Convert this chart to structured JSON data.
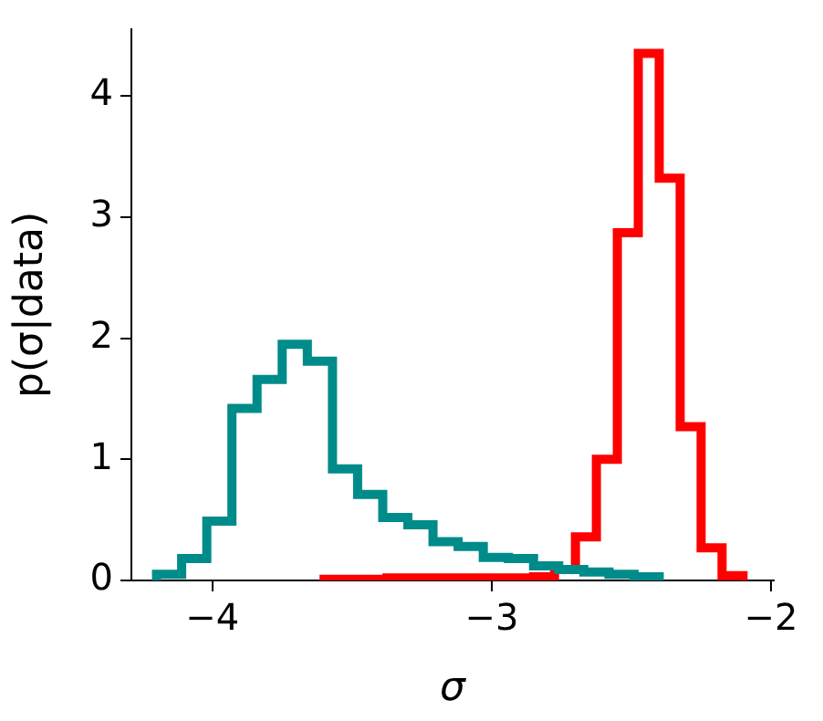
{
  "chart_data": {
    "type": "step",
    "xlabel": "σ",
    "ylabel": "p(σ|data)",
    "xlim": [
      -4.29,
      -1.99
    ],
    "ylim": [
      0,
      4.55
    ],
    "xticks": [
      {
        "value": -4,
        "label": "−4"
      },
      {
        "value": -3,
        "label": "−3"
      },
      {
        "value": -2,
        "label": "−2"
      }
    ],
    "yticks": [
      0,
      1,
      2,
      3,
      4
    ],
    "grid": false,
    "legend": false,
    "series": [
      {
        "color": "#008b8b",
        "x": [
          -4.2,
          -4.2,
          -4.11,
          -4.02,
          -3.93,
          -3.84,
          -3.75,
          -3.66,
          -3.57,
          -3.48,
          -3.39,
          -3.3,
          -3.21,
          -3.12,
          -3.03,
          -2.94,
          -2.85,
          -2.76,
          -2.67,
          -2.58,
          -2.49,
          -2.4
        ],
        "values": [
          0,
          0.05,
          0.18,
          0.49,
          1.42,
          1.66,
          1.95,
          1.81,
          0.92,
          0.71,
          0.52,
          0.46,
          0.32,
          0.28,
          0.19,
          0.18,
          0.12,
          0.09,
          0.07,
          0.05,
          0.03,
          0
        ]
      },
      {
        "color": "#ff0000",
        "x": [
          -3.6,
          -3.6,
          -3.525,
          -3.45,
          -3.375,
          -3.3,
          -3.225,
          -3.15,
          -3.075,
          -3.0,
          -2.925,
          -2.85,
          -2.775,
          -2.7,
          -2.625,
          -2.55,
          -2.475,
          -2.4,
          -2.325,
          -2.25,
          -2.175,
          -2.1
        ],
        "values": [
          0,
          0.01,
          0.01,
          0.01,
          0.02,
          0.02,
          0.02,
          0.02,
          0.02,
          0.02,
          0.02,
          0.03,
          0.09,
          0.36,
          1.0,
          2.87,
          4.35,
          3.32,
          1.27,
          0.27,
          0.04,
          0
        ]
      }
    ]
  }
}
